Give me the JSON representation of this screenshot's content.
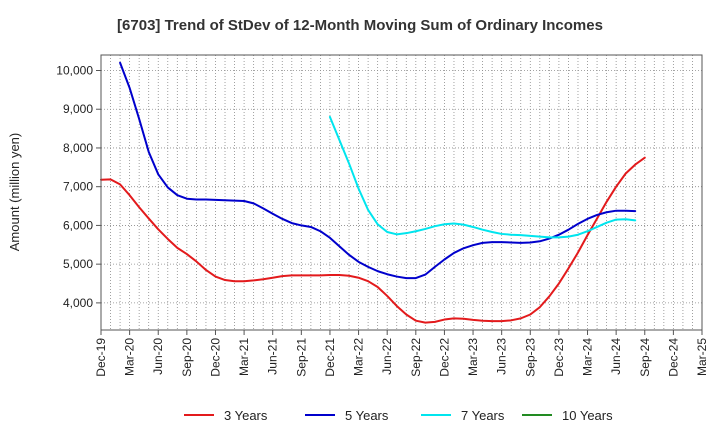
{
  "chart_data": {
    "type": "line",
    "title": "[6703]  Trend of StDev of 12-Month Moving Sum of Ordinary Incomes",
    "xlabel": "",
    "ylabel": "Amount (million yen)",
    "ylim": [
      3300,
      10400
    ],
    "yticks": [
      4000,
      5000,
      6000,
      7000,
      8000,
      9000,
      10000
    ],
    "ytick_labels": [
      "4,000",
      "5,000",
      "6,000",
      "7,000",
      "8,000",
      "9,000",
      "10,000"
    ],
    "xtick_labels": [
      "Dec-19",
      "Mar-20",
      "Jun-20",
      "Sep-20",
      "Dec-20",
      "Mar-21",
      "Jun-21",
      "Sep-21",
      "Dec-21",
      "Mar-22",
      "Jun-22",
      "Sep-22",
      "Dec-22",
      "Mar-23",
      "Jun-23",
      "Sep-23",
      "Dec-23",
      "Mar-24",
      "Jun-24",
      "Sep-24",
      "Dec-24",
      "Mar-25"
    ],
    "grid": true,
    "legend_position": "bottom",
    "series": [
      {
        "name": "3 Years",
        "color": "#e31a1c",
        "values": [
          7180,
          7190,
          7060,
          6780,
          6470,
          6180,
          5900,
          5650,
          5420,
          5260,
          5070,
          4850,
          4680,
          4590,
          4560,
          4560,
          4580,
          4610,
          4650,
          4690,
          4710,
          4710,
          4710,
          4710,
          4720,
          4720,
          4700,
          4650,
          4560,
          4410,
          4180,
          3920,
          3700,
          3540,
          3490,
          3510,
          3570,
          3600,
          3590,
          3560,
          3540,
          3530,
          3530,
          3550,
          3600,
          3700,
          3890,
          4170,
          4500,
          4890,
          5300,
          5750,
          6180,
          6610,
          7000,
          7340,
          7570,
          7750
        ]
      },
      {
        "name": "5 Years",
        "color": "#0000cc",
        "values": [
          null,
          null,
          10200,
          9550,
          8750,
          7900,
          7320,
          6980,
          6780,
          6690,
          6670,
          6670,
          6660,
          6650,
          6640,
          6630,
          6570,
          6440,
          6300,
          6170,
          6060,
          6000,
          5960,
          5850,
          5680,
          5460,
          5240,
          5060,
          4930,
          4820,
          4740,
          4680,
          4640,
          4640,
          4730,
          4930,
          5120,
          5290,
          5410,
          5490,
          5550,
          5570,
          5570,
          5560,
          5550,
          5560,
          5590,
          5660,
          5760,
          5890,
          6040,
          6170,
          6270,
          6340,
          6380,
          6380,
          6370
        ]
      },
      {
        "name": "7 Years",
        "color": "#00e5ee",
        "values": [
          null,
          null,
          null,
          null,
          null,
          null,
          null,
          null,
          null,
          null,
          null,
          null,
          null,
          null,
          null,
          null,
          null,
          null,
          null,
          null,
          null,
          null,
          null,
          null,
          8800,
          8200,
          7600,
          6950,
          6400,
          6030,
          5830,
          5770,
          5800,
          5850,
          5910,
          5980,
          6030,
          6050,
          6020,
          5960,
          5890,
          5830,
          5780,
          5760,
          5750,
          5730,
          5710,
          5690,
          5690,
          5710,
          5760,
          5850,
          5960,
          6070,
          6150,
          6160,
          6130
        ]
      },
      {
        "name": "10 Years",
        "color": "#228b22",
        "values": []
      }
    ]
  }
}
